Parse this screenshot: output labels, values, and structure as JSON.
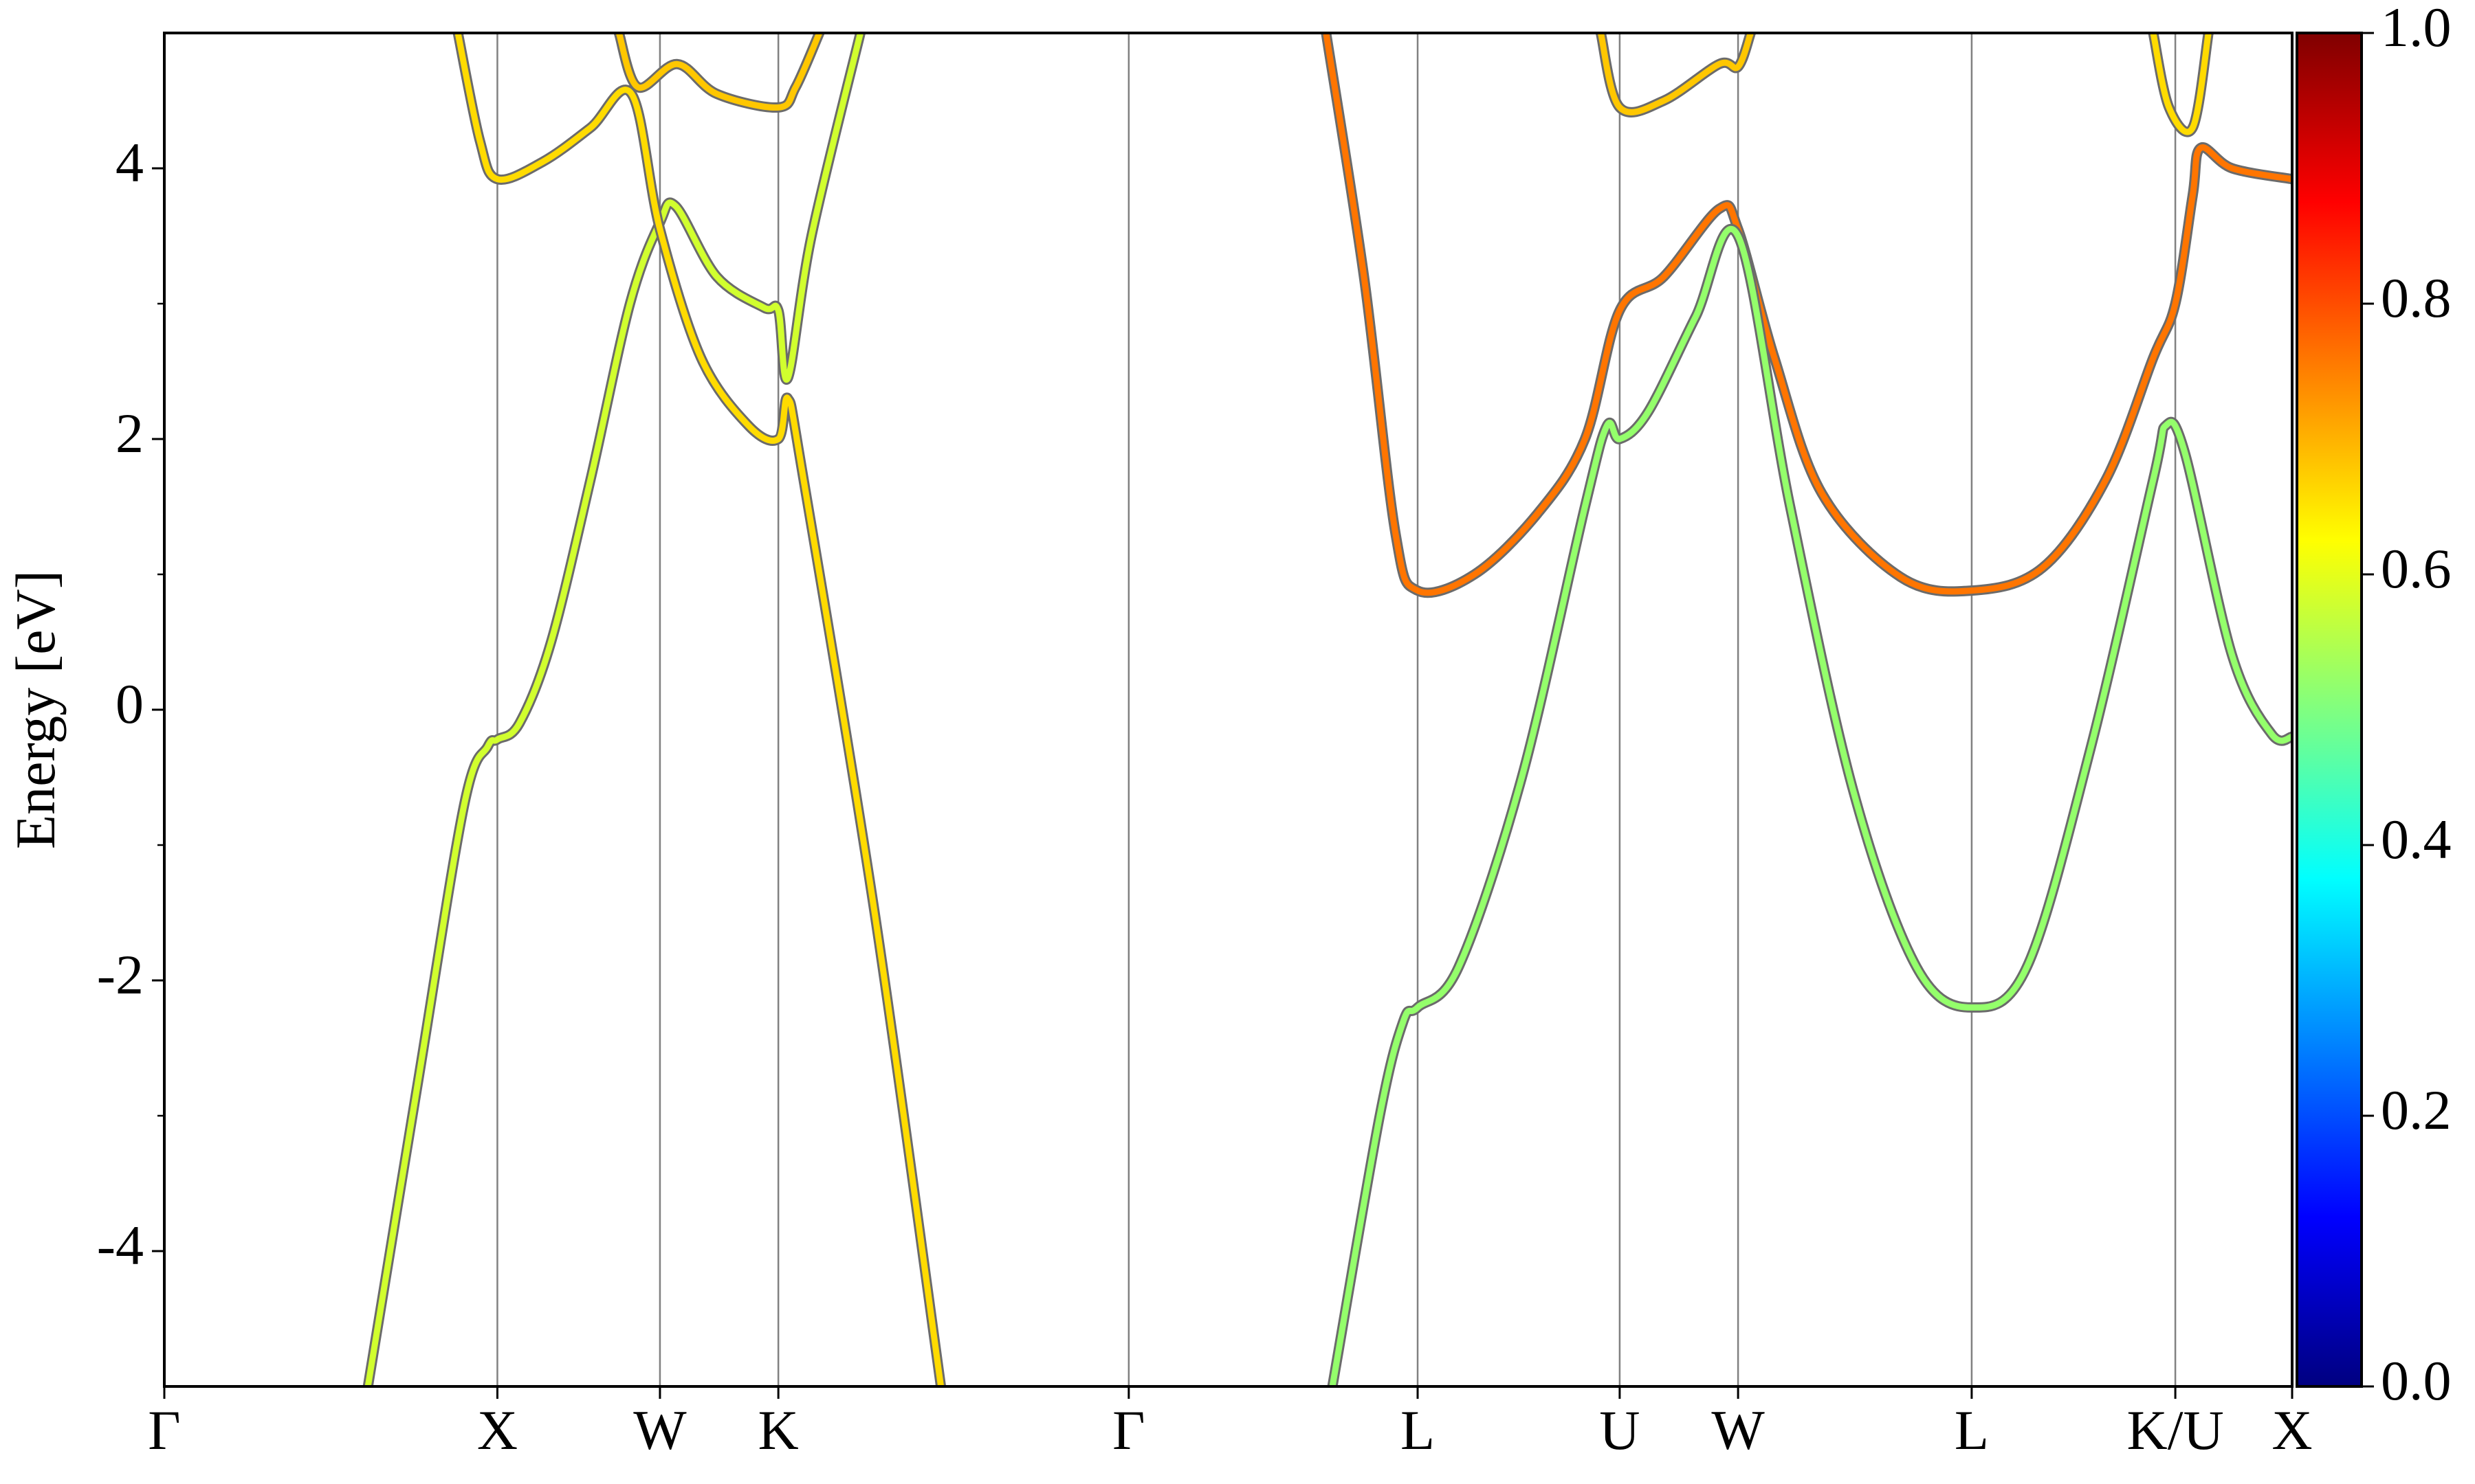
{
  "chart_data": {
    "type": "line",
    "ylabel": "Energy [eV]",
    "xlim": [
      0,
      13.48
    ],
    "ylim": [
      -5,
      5
    ],
    "xticks": [
      {
        "value": 0,
        "label": "Γ"
      },
      {
        "value": 2.11,
        "label": "X"
      },
      {
        "value": 3.14,
        "label": "W"
      },
      {
        "value": 3.89,
        "label": "K"
      },
      {
        "value": 6.11,
        "label": "Γ"
      },
      {
        "value": 7.94,
        "label": "L"
      },
      {
        "value": 9.22,
        "label": "U"
      },
      {
        "value": 9.97,
        "label": "W"
      },
      {
        "value": 11.45,
        "label": "L"
      },
      {
        "value": 12.74,
        "label": "K/U"
      },
      {
        "value": 13.48,
        "label": "X"
      }
    ],
    "xgrid": true,
    "yticks": [
      -4,
      -2,
      0,
      2,
      4
    ],
    "yminor_ticks": [
      -3,
      -1,
      1,
      3
    ],
    "colormap": "jet",
    "clim": [
      0,
      1
    ],
    "cticks": [
      {
        "value": 0,
        "label": "0.0"
      },
      0.2,
      0.4,
      0.6,
      0.8,
      {
        "value": 1,
        "label": "1.0"
      }
    ],
    "series": [
      {
        "weight": 0.58,
        "x": [
          1.29,
          1.6,
          1.9,
          2.05,
          2.11,
          2.25,
          2.45,
          2.7,
          2.95,
          3.14,
          3.24,
          3.5,
          3.8,
          3.89,
          3.95,
          4.1,
          4.41
        ],
        "values": [
          -5,
          -2.8,
          -0.7,
          -0.27,
          -0.22,
          -0.1,
          0.5,
          1.7,
          3.0,
          3.6,
          3.72,
          3.2,
          2.97,
          2.95,
          2.45,
          3.5,
          5
        ]
      },
      {
        "weight": 0.66,
        "x": [
          1.86,
          2.0,
          2.11,
          2.4,
          2.7,
          2.96,
          3.14,
          3.4,
          3.7,
          3.89,
          3.95,
          4.05,
          4.5,
          4.92
        ],
        "values": [
          5,
          4.2,
          3.92,
          4.05,
          4.3,
          4.55,
          3.55,
          2.6,
          2.1,
          2.0,
          2.3,
          1.7,
          -1.5,
          -5
        ]
      },
      {
        "weight": 0.68,
        "x": [
          2.88,
          3.0,
          3.25,
          3.5,
          3.89,
          4.0,
          4.15
        ],
        "values": [
          5,
          4.6,
          4.77,
          4.55,
          4.45,
          4.6,
          5
        ]
      },
      {
        "weight": 0.76,
        "x": [
          7.36,
          7.6,
          7.8,
          7.94,
          8.3,
          8.7,
          9.0,
          9.22,
          9.5,
          9.85,
          9.97,
          10.2,
          10.5,
          11.0,
          11.45,
          11.9,
          12.3,
          12.6,
          12.74,
          12.85,
          12.9,
          13.1,
          13.48
        ],
        "values": [
          5,
          3.2,
          1.3,
          0.88,
          1.0,
          1.45,
          2.0,
          2.95,
          3.2,
          3.7,
          3.55,
          2.6,
          1.6,
          0.98,
          0.88,
          1.05,
          1.7,
          2.6,
          3.0,
          3.8,
          4.15,
          4.0,
          3.92
        ]
      },
      {
        "weight": 0.52,
        "x": [
          7.4,
          7.7,
          7.85,
          7.94,
          8.2,
          8.6,
          9.0,
          9.14,
          9.22,
          9.4,
          9.7,
          9.97,
          10.3,
          10.7,
          11.1,
          11.45,
          11.8,
          12.2,
          12.6,
          12.68,
          12.8,
          13.1,
          13.35,
          13.48
        ],
        "values": [
          -5,
          -3,
          -2.3,
          -2.2,
          -1.9,
          -0.5,
          1.5,
          2.1,
          2.0,
          2.2,
          2.9,
          3.5,
          1.5,
          -0.6,
          -1.9,
          -2.2,
          -1.9,
          -0.3,
          1.7,
          2.1,
          1.9,
          0.4,
          -0.18,
          -0.2
        ]
      },
      {
        "weight": 0.68,
        "x": [
          9.1,
          9.22,
          9.5,
          9.85,
          9.97,
          10.05
        ],
        "values": [
          5,
          4.45,
          4.5,
          4.77,
          4.75,
          5
        ]
      },
      {
        "weight": 0.66,
        "x": [
          12.6,
          12.7,
          12.85,
          12.95
        ],
        "values": [
          5,
          4.45,
          4.3,
          5
        ]
      }
    ]
  }
}
